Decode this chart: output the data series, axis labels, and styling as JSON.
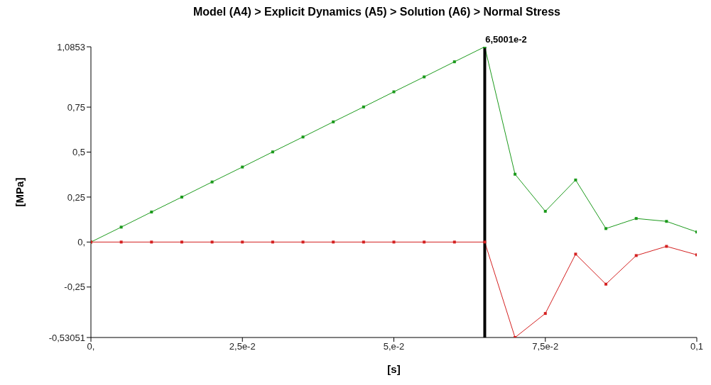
{
  "chart_data": {
    "type": "line",
    "title": "Model (A4) > Explicit Dynamics (A5) > Solution (A6) > Normal Stress",
    "xlabel": "[s]",
    "ylabel": "[MPa]",
    "x": [
      0,
      0.005,
      0.01,
      0.015,
      0.02,
      0.025,
      0.03,
      0.035,
      0.04,
      0.045,
      0.05,
      0.055,
      0.06,
      0.065,
      0.07,
      0.075,
      0.08,
      0.085,
      0.09,
      0.095,
      0.1
    ],
    "series": [
      {
        "color": "#1c9a1c",
        "values": [
          0,
          0.083,
          0.167,
          0.25,
          0.334,
          0.417,
          0.501,
          0.584,
          0.668,
          0.751,
          0.835,
          0.918,
          1.002,
          1.0853,
          0.377,
          0.171,
          0.345,
          0.075,
          0.131,
          0.115,
          0.056
        ]
      },
      {
        "color": "#d42020",
        "values": [
          0,
          0,
          0,
          0,
          0,
          0,
          0,
          0,
          0,
          0,
          0,
          0,
          0,
          0,
          -0.53051,
          -0.397,
          -0.067,
          -0.234,
          -0.075,
          -0.024,
          -0.071
        ]
      }
    ],
    "xlim": [
      0,
      0.1
    ],
    "xticks": [
      {
        "value": 0,
        "label": "0,"
      },
      {
        "value": 0.025,
        "label": "2,5e-2"
      },
      {
        "value": 0.05,
        "label": "5,e-2"
      },
      {
        "value": 0.075,
        "label": "7,5e-2"
      },
      {
        "value": 0.1,
        "label": "0,1"
      }
    ],
    "ylim": [
      -0.53051,
      1.0853
    ],
    "yticks": [
      {
        "value": -0.53051,
        "label": "-0,53051"
      },
      {
        "value": -0.25,
        "label": "-0,25"
      },
      {
        "value": 0,
        "label": "0,"
      },
      {
        "value": 0.25,
        "label": "0,25"
      },
      {
        "value": 0.5,
        "label": "0,5"
      },
      {
        "value": 0.75,
        "label": "0,75"
      },
      {
        "value": 1.0853,
        "label": "1,0853"
      }
    ],
    "ref_lines": [
      {
        "axis": "x",
        "value": 0.065001,
        "label": "6,5001e-2",
        "color": "#000000"
      }
    ],
    "marker": "square",
    "line_style": "solid",
    "grid": false,
    "legend": false
  }
}
